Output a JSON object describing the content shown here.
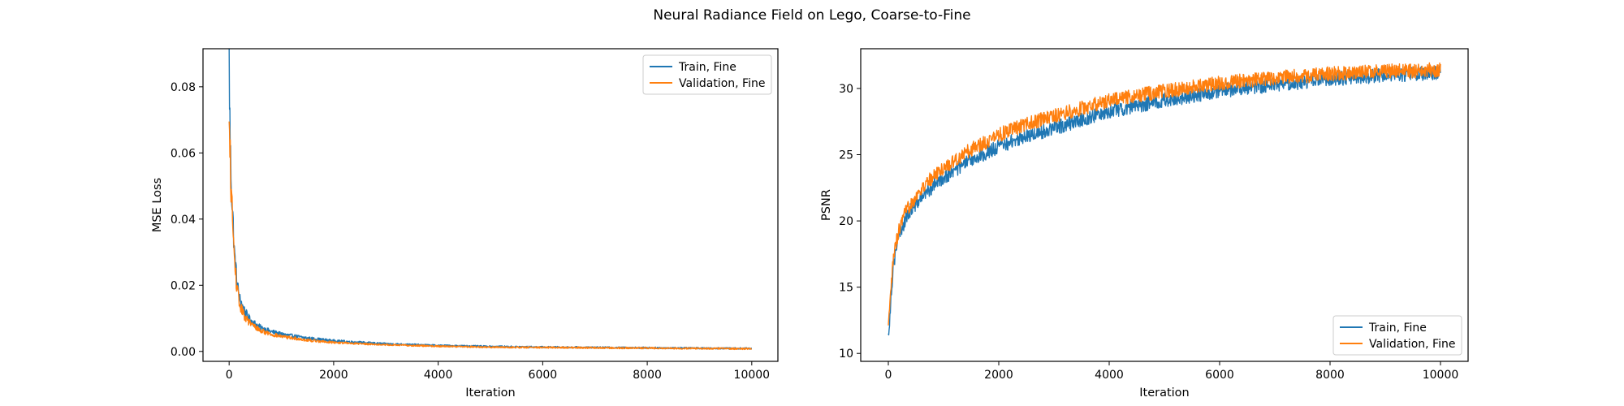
{
  "figure": {
    "title": "Neural Radiance Field on Lego, Coarse-to-Fine"
  },
  "colors": {
    "train": "#1f77b4",
    "validation": "#ff7f0e"
  },
  "chart_data": [
    {
      "type": "line",
      "title": "",
      "xlabel": "Iteration",
      "ylabel": "MSE Loss",
      "xlim": [
        -500,
        10500
      ],
      "ylim": [
        -0.003,
        0.0915
      ],
      "xticks": [
        0,
        2000,
        4000,
        6000,
        8000,
        10000
      ],
      "xtick_labels": [
        "0",
        "2000",
        "4000",
        "6000",
        "8000",
        "10000"
      ],
      "yticks": [
        0.0,
        0.02,
        0.04,
        0.06,
        0.08
      ],
      "ytick_labels": [
        "0.00",
        "0.02",
        "0.04",
        "0.06",
        "0.08"
      ],
      "grid": false,
      "legend_position": "upper right",
      "series": [
        {
          "name": "Train, Fine",
          "color": "#1f77b4",
          "x": [
            0,
            20,
            50,
            100,
            150,
            200,
            300,
            400,
            600,
            800,
            1000,
            1500,
            2000,
            3000,
            4000,
            5000,
            6000,
            7000,
            8000,
            9000,
            10000
          ],
          "y": [
            0.088,
            0.062,
            0.048,
            0.03,
            0.021,
            0.016,
            0.012,
            0.0095,
            0.0072,
            0.006,
            0.0052,
            0.004,
            0.0032,
            0.0023,
            0.0018,
            0.0015,
            0.0013,
            0.0012,
            0.0011,
            0.001,
            0.0009
          ]
        },
        {
          "name": "Validation, Fine",
          "color": "#ff7f0e",
          "x": [
            0,
            20,
            50,
            100,
            150,
            200,
            300,
            400,
            600,
            800,
            1000,
            1500,
            2000,
            3000,
            4000,
            5000,
            6000,
            7000,
            8000,
            9000,
            10000
          ],
          "y": [
            0.066,
            0.058,
            0.045,
            0.028,
            0.019,
            0.014,
            0.0105,
            0.0085,
            0.0063,
            0.0052,
            0.0045,
            0.0034,
            0.0027,
            0.002,
            0.0016,
            0.0013,
            0.0012,
            0.0011,
            0.001,
            0.0009,
            0.0008
          ]
        }
      ]
    },
    {
      "type": "line",
      "title": "",
      "xlabel": "Iteration",
      "ylabel": "PSNR",
      "xlim": [
        -500,
        10500
      ],
      "ylim": [
        9.4,
        33.0
      ],
      "xticks": [
        0,
        2000,
        4000,
        6000,
        8000,
        10000
      ],
      "xtick_labels": [
        "0",
        "2000",
        "4000",
        "6000",
        "8000",
        "10000"
      ],
      "yticks": [
        10,
        15,
        20,
        25,
        30
      ],
      "ytick_labels": [
        "10",
        "15",
        "20",
        "25",
        "30"
      ],
      "grid": false,
      "legend_position": "lower right",
      "series": [
        {
          "name": "Train, Fine",
          "color": "#1f77b4",
          "x": [
            0,
            20,
            50,
            100,
            200,
            300,
            400,
            600,
            800,
            1000,
            1500,
            2000,
            2500,
            3000,
            4000,
            5000,
            6000,
            7000,
            8000,
            9000,
            10000
          ],
          "y": [
            11.2,
            12.5,
            14.5,
            17.0,
            19.0,
            20.0,
            20.8,
            21.8,
            22.6,
            23.3,
            24.6,
            25.6,
            26.4,
            27.0,
            28.3,
            29.1,
            29.8,
            30.3,
            30.7,
            31.0,
            31.2
          ]
        },
        {
          "name": "Validation, Fine",
          "color": "#ff7f0e",
          "x": [
            0,
            20,
            50,
            100,
            200,
            300,
            400,
            600,
            800,
            1000,
            1500,
            2000,
            2500,
            3000,
            4000,
            5000,
            6000,
            7000,
            8000,
            9000,
            10000
          ],
          "y": [
            11.8,
            13.0,
            15.0,
            17.5,
            19.4,
            20.5,
            21.3,
            22.4,
            23.3,
            24.0,
            25.4,
            26.5,
            27.3,
            27.9,
            29.1,
            29.8,
            30.4,
            30.8,
            31.1,
            31.3,
            31.4
          ]
        }
      ]
    }
  ]
}
